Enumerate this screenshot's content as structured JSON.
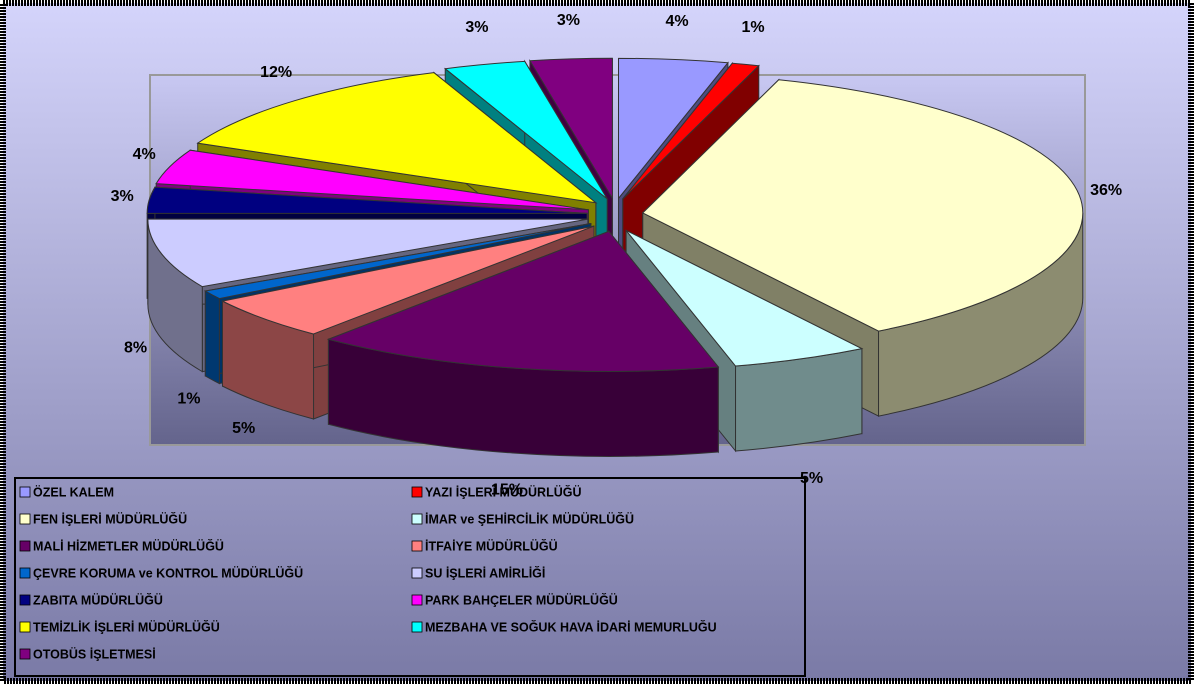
{
  "chart_data": {
    "type": "pie",
    "categories": [
      "ÖZEL KALEM",
      "YAZI İŞLERİ MÜDÜRLÜĞÜ",
      "FEN İŞLERİ MÜDÜRLÜĞÜ",
      "İMAR ve ŞEHİRCİLİK MÜDÜRLÜĞÜ",
      "MALİ HİZMETLER MÜDÜRLÜĞÜ",
      "İTFAİYE MÜDÜRLÜĞÜ",
      "ÇEVRE KORUMA ve KONTROL MÜDÜRLÜĞÜ",
      "SU İŞLERİ AMİRLİĞİ",
      "ZABITA MÜDÜRLÜĞÜ",
      "PARK BAHÇELER MÜDÜRLÜĞÜ",
      "TEMİZLİK İŞLERİ MÜDÜRLÜĞÜ",
      "MEZBAHA VE SOĞUK HAVA İDARİ MEMURLUĞU",
      "OTOBÜS İŞLETMESİ"
    ],
    "values": [
      4,
      1,
      36,
      5,
      15,
      5,
      1,
      8,
      3,
      4,
      12,
      3,
      3
    ],
    "value_labels": [
      "4%",
      "1%",
      "36%",
      "5%",
      "15%",
      "5%",
      "1%",
      "8%",
      "3%",
      "4%",
      "12%",
      "3%",
      "3%"
    ],
    "colors": [
      "#9999ff",
      "#ff0000",
      "#ffffcc",
      "#ccffff",
      "#660066",
      "#ff8080",
      "#0066cc",
      "#ccccff",
      "#000080",
      "#ff00ff",
      "#ffff00",
      "#00ffff",
      "#800080"
    ]
  }
}
